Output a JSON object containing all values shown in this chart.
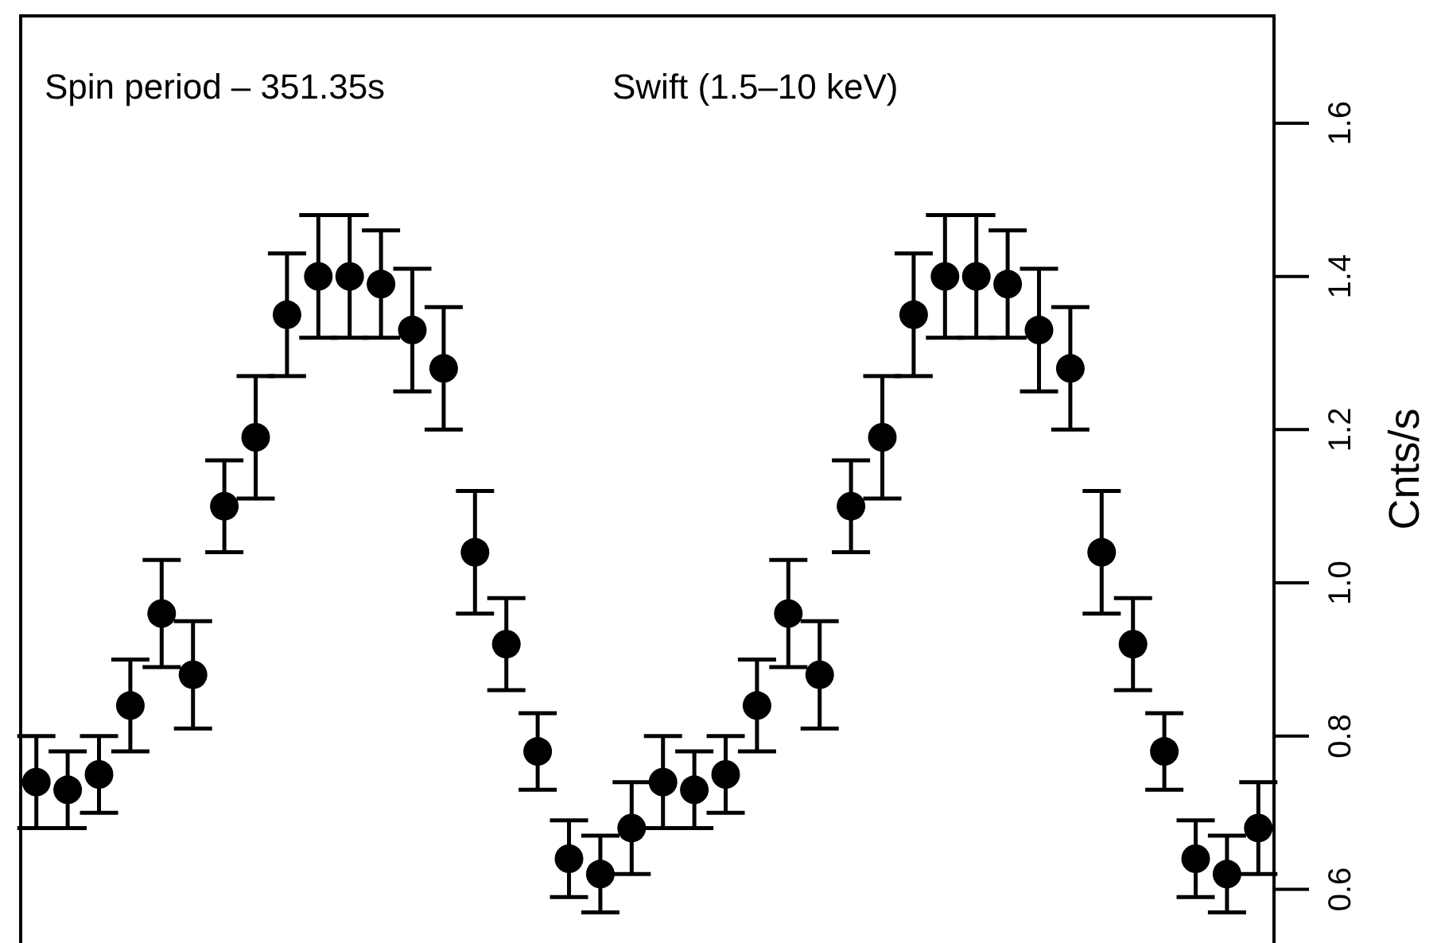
{
  "chart_data": {
    "type": "scatter",
    "ylabel": "Cnts/s",
    "annotations": [
      "Spin period –  351.35s",
      "Swift (1.5–10 keV)"
    ],
    "categories": [
      null,
      null,
      null,
      null,
      null,
      null,
      null,
      null,
      null,
      null,
      null,
      null,
      null,
      null,
      null,
      null,
      null,
      null,
      null,
      null,
      null,
      null,
      null,
      null,
      null,
      null,
      null,
      null,
      null,
      null,
      null,
      null,
      null,
      null,
      null,
      null,
      null,
      null,
      null,
      null
    ],
    "series": [
      {
        "color": "#000000",
        "values": [
          0.74,
          0.73,
          0.75,
          0.84,
          0.96,
          0.88,
          1.1,
          1.19,
          1.35,
          1.4,
          1.4,
          1.39,
          1.33,
          1.28,
          1.04,
          0.92,
          0.78,
          0.64,
          0.62,
          0.68,
          0.74,
          0.73,
          0.75,
          0.84,
          0.96,
          0.88,
          1.1,
          1.19,
          1.35,
          1.4,
          1.4,
          1.39,
          1.33,
          1.28,
          1.04,
          0.92,
          0.78,
          0.64,
          0.62,
          0.68
        ],
        "errors": [
          0.06,
          0.05,
          0.05,
          0.06,
          0.07,
          0.07,
          0.06,
          0.08,
          0.08,
          0.08,
          0.08,
          0.07,
          0.08,
          0.08,
          0.08,
          0.06,
          0.05,
          0.05,
          0.05,
          0.06,
          0.06,
          0.05,
          0.05,
          0.06,
          0.07,
          0.07,
          0.06,
          0.08,
          0.08,
          0.08,
          0.08,
          0.07,
          0.08,
          0.08,
          0.08,
          0.06,
          0.05,
          0.05,
          0.05,
          0.06
        ]
      }
    ],
    "ylim": [
      0.53,
      1.74
    ],
    "yticks": [
      {
        "value": 0.6,
        "label": "0.6"
      },
      {
        "value": 0.8,
        "label": "0.8"
      },
      {
        "value": 1.0,
        "label": "1.0"
      },
      {
        "value": 1.2,
        "label": "1.2"
      },
      {
        "value": 1.4,
        "label": "1.4"
      },
      {
        "value": 1.6,
        "label": "1.6"
      }
    ],
    "tick_labels": "y",
    "marker": "circle",
    "grid": false
  }
}
